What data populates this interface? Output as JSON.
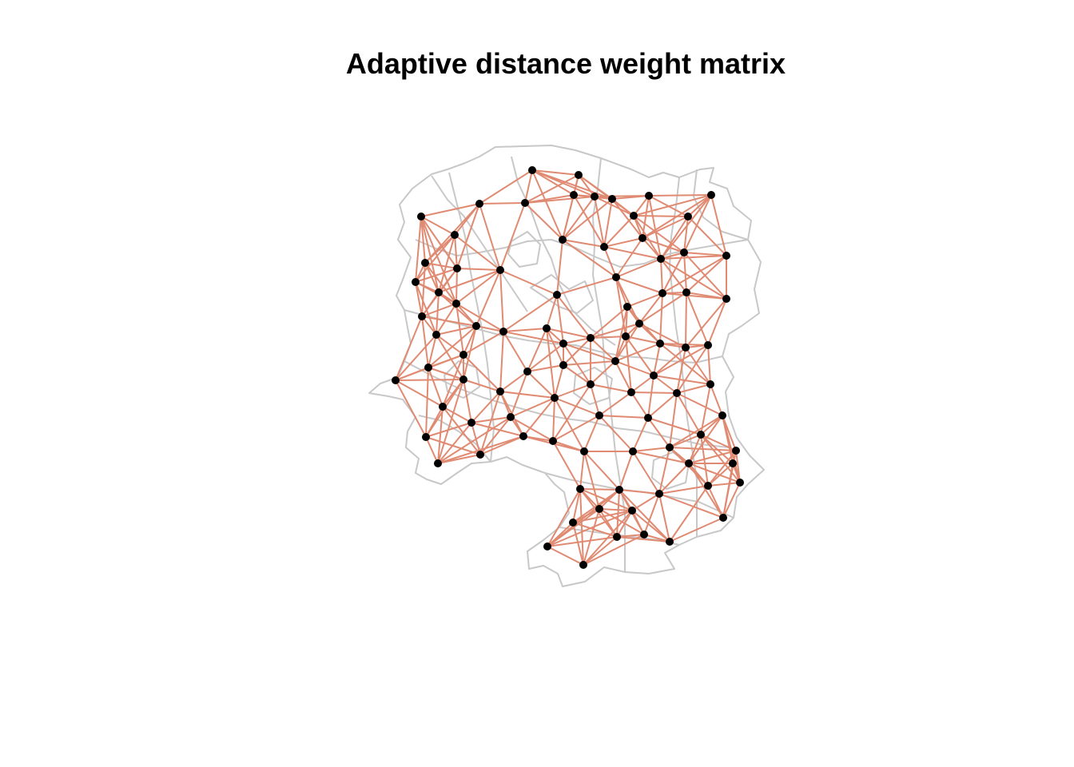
{
  "title": "Adaptive distance weight matrix",
  "colors": {
    "background": "#ffffff",
    "boundary": "#c8c8c8",
    "edge": "#e08a72",
    "node": "#000000",
    "title": "#000000"
  }
}
